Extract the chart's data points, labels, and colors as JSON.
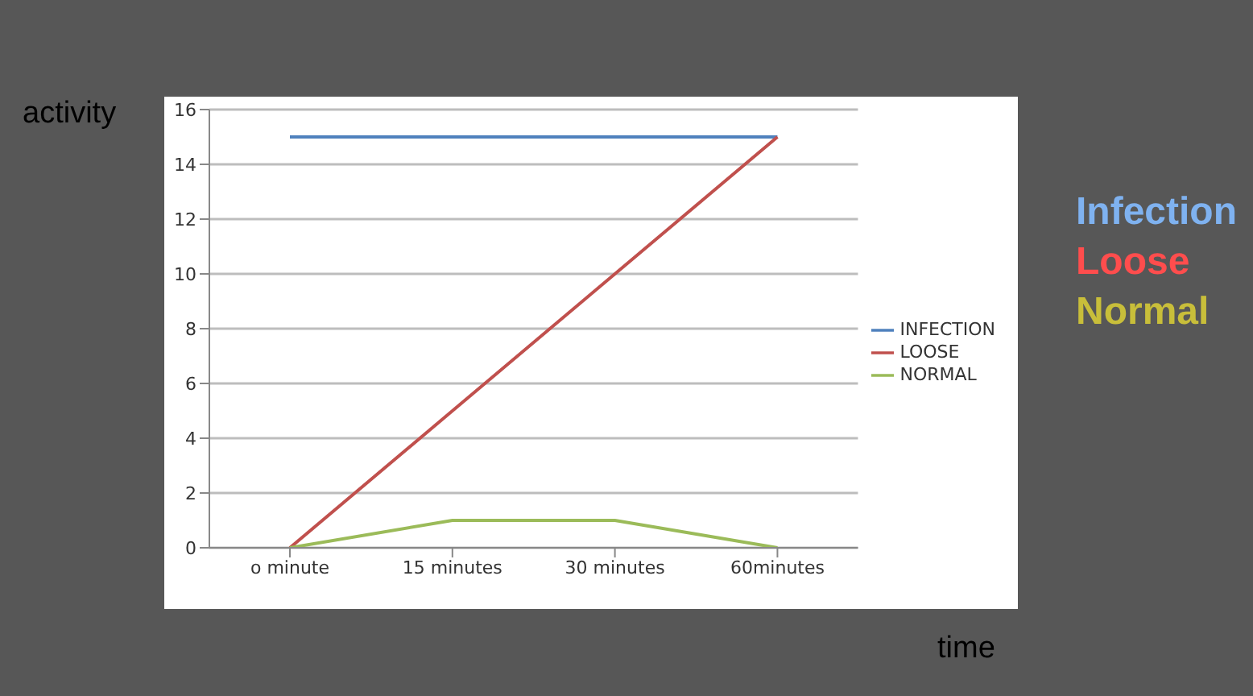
{
  "chart_data": {
    "type": "line",
    "xlabel": "time",
    "ylabel": "activity",
    "categories": [
      "o minute",
      "15 minutes",
      "30 minutes",
      "60minutes"
    ],
    "series": [
      {
        "name": "INFECTION",
        "color": "#4f81bd",
        "values": [
          15,
          15,
          15,
          15
        ]
      },
      {
        "name": "LOOSE",
        "color": "#c0504d",
        "values": [
          0,
          5,
          10,
          15
        ]
      },
      {
        "name": "NORMAL",
        "color": "#9bbb59",
        "values": [
          0,
          1,
          1,
          0
        ]
      }
    ],
    "ylim": [
      0,
      16
    ],
    "yticks": [
      0,
      2,
      4,
      6,
      8,
      10,
      12,
      14,
      16
    ],
    "grid": "y",
    "legend": "right",
    "marker": "none",
    "line_style": "solid",
    "annotations": [
      "Infection",
      "Loose",
      "Normal"
    ]
  }
}
